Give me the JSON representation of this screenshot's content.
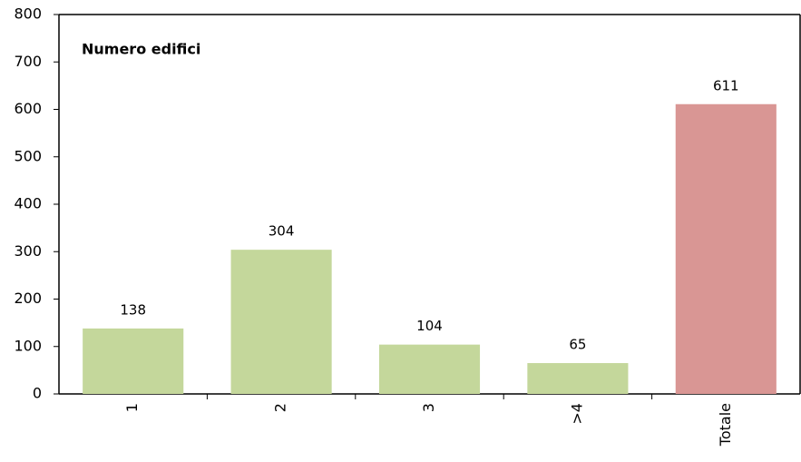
{
  "chart_data": {
    "type": "bar",
    "title": "Numero edifici",
    "categories": [
      "1",
      "2",
      "3",
      ">4",
      "Totale"
    ],
    "values": [
      138,
      304,
      104,
      65,
      611
    ],
    "colors": [
      "#c4d79b",
      "#c4d79b",
      "#c4d79b",
      "#c4d79b",
      "#d99694"
    ],
    "ylim": [
      0,
      800
    ],
    "yticks": [
      0,
      100,
      200,
      300,
      400,
      500,
      600,
      700,
      800
    ],
    "grid": false
  }
}
